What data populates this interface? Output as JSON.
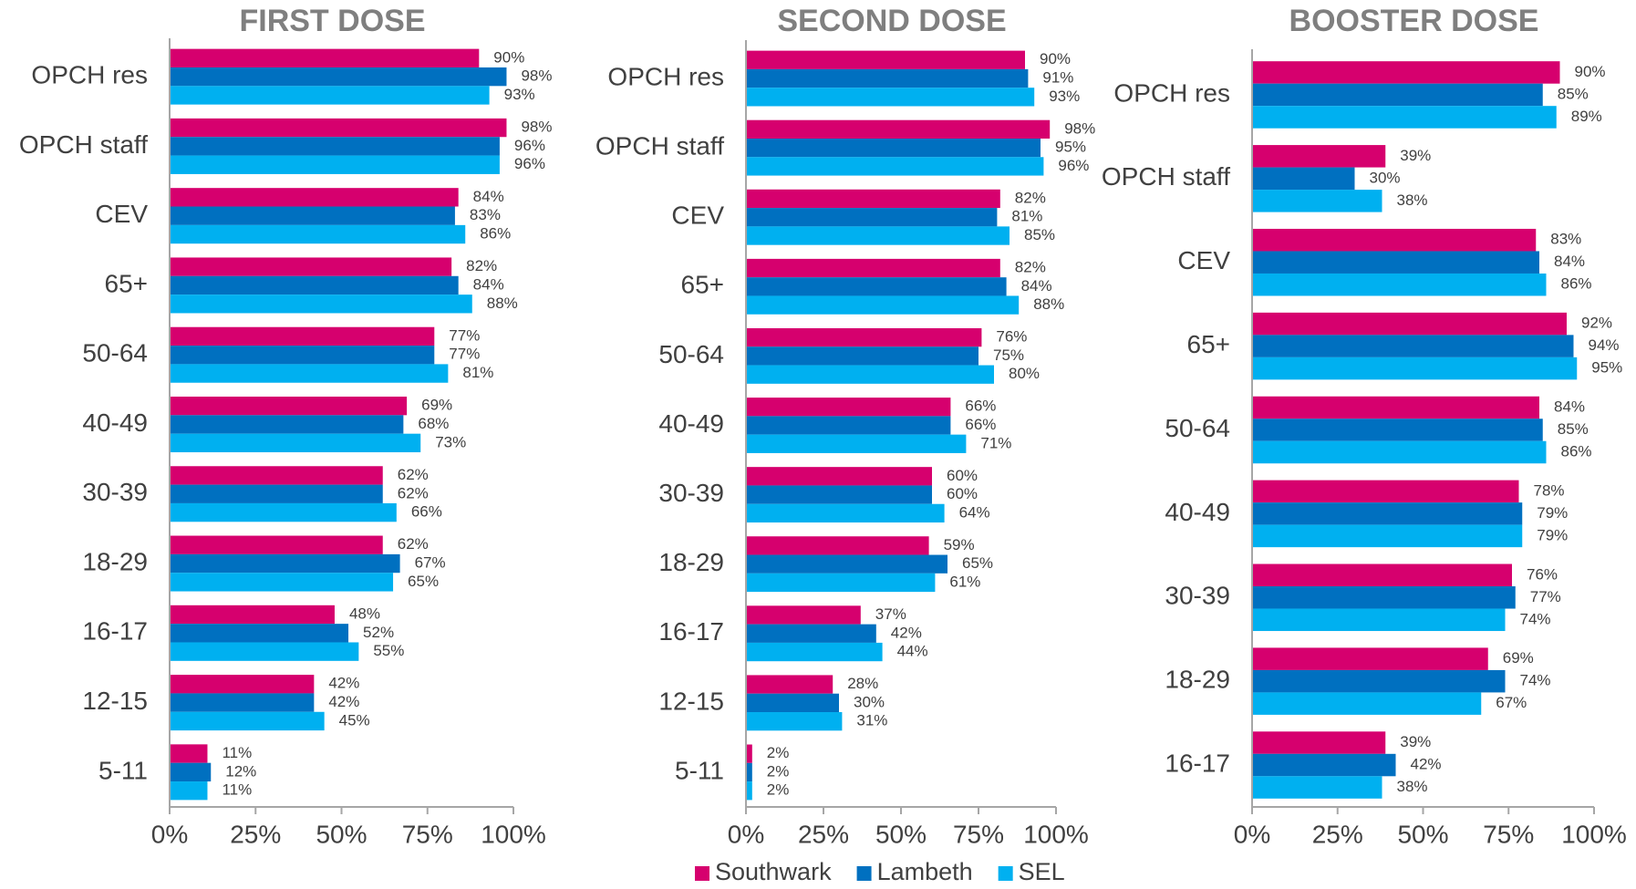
{
  "chart_data": [
    {
      "type": "bar",
      "orientation": "horizontal",
      "title": "FIRST DOSE",
      "categories": [
        "OPCH res",
        "OPCH staff",
        "CEV",
        "65+",
        "50-64",
        "40-49",
        "30-39",
        "18-29",
        "16-17",
        "12-15",
        "5-11"
      ],
      "series": [
        {
          "name": "Southwark",
          "color": "#d6006e",
          "values": [
            90,
            98,
            84,
            82,
            77,
            69,
            62,
            62,
            48,
            42,
            11
          ],
          "value_labels": [
            "90%",
            "98%",
            "84%",
            "82%",
            "77%",
            "69%",
            "62%",
            "62%",
            "48%",
            "42%",
            "11%"
          ]
        },
        {
          "name": "Lambeth",
          "color": "#0070c0",
          "values": [
            98,
            96,
            83,
            84,
            77,
            68,
            62,
            67,
            52,
            42,
            12
          ],
          "value_labels": [
            "98%",
            "96%",
            "83%",
            "84%",
            "77%",
            "68%",
            "62%",
            "67%",
            "52%",
            "42%",
            "12%"
          ]
        },
        {
          "name": "SEL",
          "color": "#00b0f0",
          "values": [
            93,
            96,
            86,
            88,
            81,
            73,
            66,
            65,
            55,
            45,
            11
          ],
          "value_labels": [
            "93%",
            "96%",
            "86%",
            "88%",
            "81%",
            "73%",
            "66%",
            "65%",
            "55%",
            "45%",
            "11%"
          ]
        }
      ],
      "xlim": [
        0,
        100
      ],
      "xticks": [
        {
          "value": 0,
          "label": "0%"
        },
        {
          "value": 25,
          "label": "25%"
        },
        {
          "value": 50,
          "label": "50%"
        },
        {
          "value": 75,
          "label": "75%"
        },
        {
          "value": 100,
          "label": "100%"
        }
      ]
    },
    {
      "type": "bar",
      "orientation": "horizontal",
      "title": "SECOND DOSE",
      "categories": [
        "OPCH res",
        "OPCH staff",
        "CEV",
        "65+",
        "50-64",
        "40-49",
        "30-39",
        "18-29",
        "16-17",
        "12-15",
        "5-11"
      ],
      "series": [
        {
          "name": "Southwark",
          "color": "#d6006e",
          "values": [
            90,
            98,
            82,
            82,
            76,
            66,
            60,
            59,
            37,
            28,
            2
          ],
          "value_labels": [
            "90%",
            "98%",
            "82%",
            "82%",
            "76%",
            "66%",
            "60%",
            "59%",
            "37%",
            "28%",
            "2%"
          ]
        },
        {
          "name": "Lambeth",
          "color": "#0070c0",
          "values": [
            91,
            95,
            81,
            84,
            75,
            66,
            60,
            65,
            42,
            30,
            2
          ],
          "value_labels": [
            "91%",
            "95%",
            "81%",
            "84%",
            "75%",
            "66%",
            "60%",
            "65%",
            "42%",
            "30%",
            "2%"
          ]
        },
        {
          "name": "SEL",
          "color": "#00b0f0",
          "values": [
            93,
            96,
            85,
            88,
            80,
            71,
            64,
            61,
            44,
            31,
            2
          ],
          "value_labels": [
            "93%",
            "96%",
            "85%",
            "88%",
            "80%",
            "71%",
            "64%",
            "61%",
            "44%",
            "31%",
            "2%"
          ]
        }
      ],
      "xlim": [
        0,
        100
      ],
      "xticks": [
        {
          "value": 0,
          "label": "0%"
        },
        {
          "value": 25,
          "label": "25%"
        },
        {
          "value": 50,
          "label": "50%"
        },
        {
          "value": 75,
          "label": "75%"
        },
        {
          "value": 100,
          "label": "100%"
        }
      ]
    },
    {
      "type": "bar",
      "orientation": "horizontal",
      "title": "BOOSTER DOSE",
      "categories": [
        "OPCH res",
        "OPCH staff",
        "CEV",
        "65+",
        "50-64",
        "40-49",
        "30-39",
        "18-29",
        "16-17"
      ],
      "series": [
        {
          "name": "Southwark",
          "color": "#d6006e",
          "values": [
            90,
            39,
            83,
            92,
            84,
            78,
            76,
            69,
            39
          ],
          "value_labels": [
            "90%",
            "39%",
            "83%",
            "92%",
            "84%",
            "78%",
            "76%",
            "69%",
            "39%"
          ]
        },
        {
          "name": "Lambeth",
          "color": "#0070c0",
          "values": [
            85,
            30,
            84,
            94,
            85,
            79,
            77,
            74,
            42
          ],
          "value_labels": [
            "85%",
            "30%",
            "84%",
            "94%",
            "85%",
            "79%",
            "77%",
            "74%",
            "42%"
          ]
        },
        {
          "name": "SEL",
          "color": "#00b0f0",
          "values": [
            89,
            38,
            86,
            95,
            86,
            79,
            74,
            67,
            38
          ],
          "value_labels": [
            "89%",
            "38%",
            "86%",
            "95%",
            "86%",
            "79%",
            "74%",
            "67%",
            "38%"
          ]
        }
      ],
      "xlim": [
        0,
        100
      ],
      "xticks": [
        {
          "value": 0,
          "label": "0%"
        },
        {
          "value": 25,
          "label": "25%"
        },
        {
          "value": 50,
          "label": "50%"
        },
        {
          "value": 75,
          "label": "75%"
        },
        {
          "value": 100,
          "label": "100%"
        }
      ]
    }
  ]
}
